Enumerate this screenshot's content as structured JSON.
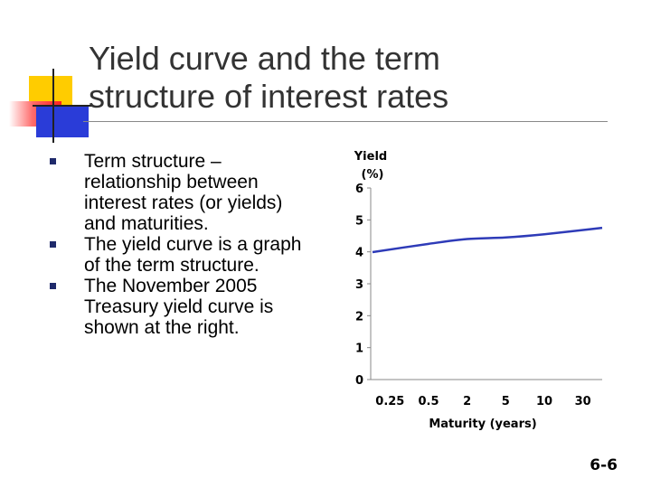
{
  "slide": {
    "title_line1": "Yield curve and the term",
    "title_line2": "structure of interest rates",
    "bullets": [
      "Term structure – relationship between interest rates (or yields) and maturities.",
      "The yield curve is a graph of the term structure.",
      "The November 2005 Treasury yield curve is shown at the right."
    ],
    "page_number": "6-6",
    "bullet_color": "#1f2a6b"
  },
  "chart_data": {
    "type": "line",
    "title": "",
    "ylabel_line1": "Yield",
    "ylabel_line2": "(%)",
    "xlabel": "Maturity (years)",
    "categories": [
      "0.25",
      "0.5",
      "2",
      "5",
      "10",
      "30"
    ],
    "yticks": [
      0,
      1,
      2,
      3,
      4,
      5,
      6
    ],
    "ylim": [
      0,
      6
    ],
    "grid": false,
    "series": [
      {
        "x": [
          "0.25",
          "0.5",
          "2",
          "5",
          "10",
          "30"
        ],
        "values": [
          3.99,
          4.25,
          4.4,
          4.45,
          4.55,
          4.75
        ],
        "color": "#2e3bb8"
      }
    ]
  }
}
